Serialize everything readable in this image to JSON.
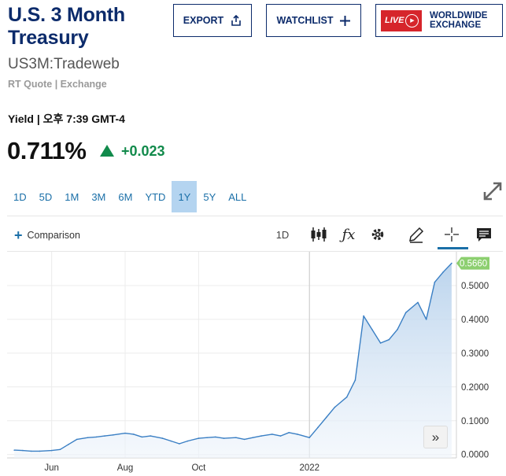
{
  "header": {
    "title": "U.S. 3 Month Treasury",
    "symbol": "US3M:Tradeweb",
    "quote_source": "RT Quote | Exchange"
  },
  "buttons": {
    "export_label": "EXPORT",
    "watchlist_label": "WATCHLIST",
    "live_badge": "LIVE",
    "live_label_line1": "WORLDWIDE",
    "live_label_line2": "EXCHANGE"
  },
  "quote": {
    "yield_time": "Yield | 오후 7:39 GMT-4",
    "price": "0.711%",
    "change": "+0.023",
    "direction": "up",
    "up_color": "#118a4b"
  },
  "ranges": [
    "1D",
    "5D",
    "1M",
    "3M",
    "6M",
    "YTD",
    "1Y",
    "5Y",
    "ALL"
  ],
  "active_range": "1Y",
  "toolbar": {
    "comparison_label": "Comparison",
    "interval_label": "1D",
    "icons": [
      "candlestick-icon",
      "function-icon",
      "gear-icon",
      "draw-pencil-icon",
      "crosshair-icon",
      "comment-icon"
    ]
  },
  "accent_color": "#1a6fa8",
  "brand_color": "#0c2b6b",
  "chart_data": {
    "type": "area",
    "x": [
      "2021-05-01",
      "2021-05-08",
      "2021-05-15",
      "2021-05-22",
      "2021-06-01",
      "2021-06-08",
      "2021-06-15",
      "2021-06-22",
      "2021-07-01",
      "2021-07-08",
      "2021-07-15",
      "2021-07-22",
      "2021-08-01",
      "2021-08-08",
      "2021-08-15",
      "2021-08-22",
      "2021-09-01",
      "2021-09-08",
      "2021-09-15",
      "2021-09-22",
      "2021-10-01",
      "2021-10-08",
      "2021-10-15",
      "2021-10-22",
      "2021-11-01",
      "2021-11-08",
      "2021-11-15",
      "2021-11-22",
      "2021-12-01",
      "2021-12-08",
      "2021-12-15",
      "2021-12-22",
      "2022-01-01",
      "2022-01-08",
      "2022-01-15",
      "2022-01-22",
      "2022-02-01",
      "2022-02-08",
      "2022-02-15",
      "2022-02-22",
      "2022-03-01",
      "2022-03-08",
      "2022-03-15",
      "2022-03-22",
      "2022-04-01",
      "2022-04-08",
      "2022-04-15",
      "2022-04-22",
      "2022-04-29"
    ],
    "values": [
      0.013,
      0.012,
      0.01,
      0.01,
      0.012,
      0.015,
      0.03,
      0.045,
      0.05,
      0.052,
      0.055,
      0.058,
      0.063,
      0.06,
      0.052,
      0.055,
      0.048,
      0.04,
      0.032,
      0.04,
      0.048,
      0.05,
      0.052,
      0.048,
      0.05,
      0.045,
      0.05,
      0.055,
      0.06,
      0.055,
      0.065,
      0.06,
      0.05,
      0.08,
      0.11,
      0.14,
      0.17,
      0.22,
      0.41,
      0.37,
      0.33,
      0.34,
      0.37,
      0.42,
      0.45,
      0.4,
      0.51,
      0.54,
      0.566
    ],
    "last_label": "0.5660",
    "ylim": [
      -0.01,
      0.6
    ],
    "yticks": [
      "0.0000",
      "0.1000",
      "0.2000",
      "0.3000",
      "0.4000",
      "0.5000"
    ],
    "xticks": [
      "Jun",
      "Aug",
      "Oct",
      "2022"
    ],
    "grid": true,
    "line_color": "#3a7fc4",
    "last_label_color": "#8ccf6f"
  }
}
